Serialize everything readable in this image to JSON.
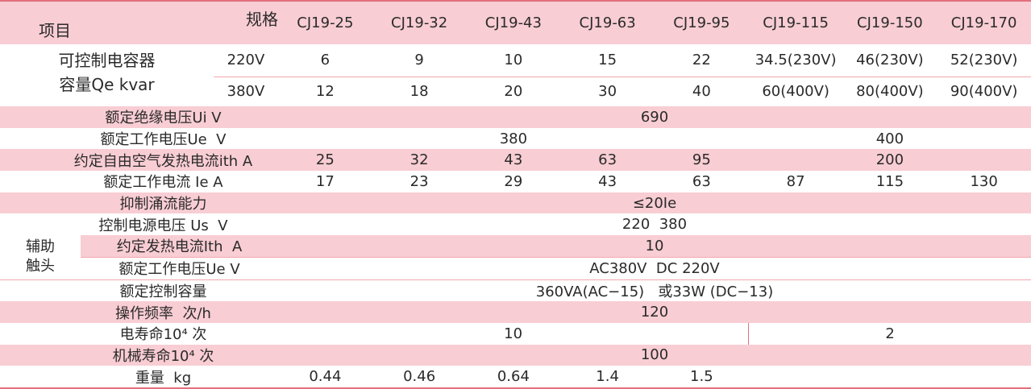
{
  "header": {
    "item": "项目",
    "spec": "规格",
    "models": [
      "CJ19-25",
      "CJ19-32",
      "CJ19-43",
      "CJ19-63",
      "CJ19-95",
      "CJ19-115",
      "CJ19-150",
      "CJ19-170"
    ]
  },
  "capacitor": {
    "label_lines": [
      "可控制电容器",
      "容量Qe kvar"
    ],
    "rows": [
      {
        "voltage": "220V",
        "values": [
          "6",
          "9",
          "10",
          "15",
          "22",
          "34.5(230V)",
          "46(230V)",
          "52(230V)"
        ]
      },
      {
        "voltage": "380V",
        "values": [
          "12",
          "18",
          "20",
          "30",
          "40",
          "60(400V)",
          "80(400V)",
          "90(400V)"
        ]
      }
    ]
  },
  "rows": [
    {
      "label": "额定绝缘电压Ui V",
      "cells": [
        "690"
      ]
    },
    {
      "label": "额定工作电压Ue  V",
      "cells": [
        "380",
        "400"
      ]
    },
    {
      "label": "约定自由空气发热电流ith A",
      "cells": [
        "25",
        "32",
        "43",
        "63",
        "95",
        "200"
      ]
    },
    {
      "label": "额定工作电流 Ie A",
      "cells": [
        "17",
        "23",
        "29",
        "43",
        "63",
        "87",
        "115",
        "130"
      ]
    },
    {
      "label": "抑制涌流能力",
      "cells": [
        "≤20Ie"
      ]
    },
    {
      "label": "控制电源电压 Us  V",
      "cells": [
        "220  380"
      ]
    },
    {
      "label": "额定控制容量",
      "cells": [
        "360VA(AC−15)   或33W (DC−13)"
      ]
    },
    {
      "label": "操作频率  次/h",
      "cells": [
        "120"
      ]
    },
    {
      "label": "电寿命10⁴ 次",
      "cells": [
        "10",
        "2"
      ]
    },
    {
      "label": "机械寿命10⁴ 次",
      "cells": [
        "100"
      ]
    },
    {
      "label": "重量  kg",
      "cells": [
        "0.44",
        "0.46",
        "0.64",
        "1.4",
        "1.5"
      ]
    }
  ],
  "aux": {
    "label_lines": [
      "辅助",
      "触头"
    ],
    "rows": [
      {
        "label": "约定发热电流Ith  A",
        "cells": [
          "10"
        ]
      },
      {
        "label": "额定工作电压Ue V",
        "cells": [
          "AC380V  DC 220V"
        ]
      }
    ]
  }
}
